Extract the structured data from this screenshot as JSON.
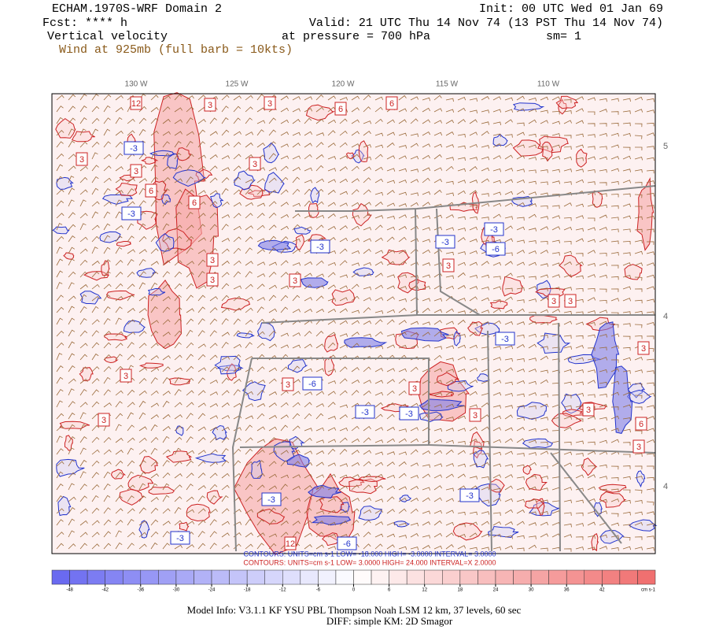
{
  "header": {
    "title": "ECHAM.1970S-WRF Domain 2",
    "init": "Init: 00 UTC Wed 01 Jan 69",
    "forecast": "Fcst: **** h",
    "valid": "Valid: 21 UTC Thu 14 Nov 74 (13 PST Thu 14 Nov 74)",
    "field": "Vertical velocity",
    "level": "at pressure =  700 hPa",
    "smoothing": "sm= 1",
    "wind": "Wind at 925mb (full barb = 10kts)"
  },
  "map": {
    "longitude_labels": [
      "130 W",
      "125 W",
      "120 W",
      "115 W",
      "110 W"
    ],
    "latitude_labels": [
      "5",
      "4",
      "4"
    ],
    "contour_labels": [
      "12",
      "3",
      "3",
      "6",
      "6",
      "-3",
      "3",
      "3",
      "6",
      "-3",
      "6",
      "3",
      "-3",
      "3",
      "3",
      "3",
      "-3",
      "3",
      "-3",
      "-6",
      "3",
      "3",
      "-3",
      "3",
      "-6",
      "3",
      "3",
      "-3",
      "-3",
      "3",
      "3",
      "6",
      "-3",
      "-3",
      "12",
      "-6",
      "-3",
      "3",
      "3",
      "3"
    ],
    "positive_color": "#cc2222",
    "negative_color": "#2233cc"
  },
  "contour_info": {
    "negative": "CONTOURS:  UNITS=cm s-1   LOW=  -18.000     HIGH=  -3.0000     INTERVAL=  3.0000",
    "positive": "CONTOURS:  UNITS=cm s-1   LOW=  3.0000     HIGH=  24.000     INTERVAL=X  2.0000"
  },
  "colorbar": {
    "ticks": [
      -48,
      -42,
      -36,
      -30,
      -24,
      -18,
      -12,
      -6,
      0,
      6,
      12,
      18,
      24,
      30,
      36,
      42
    ],
    "unit": "cm s-1",
    "low_color": "#6a6af0",
    "mid_color": "#ffffff",
    "high_color": "#f07070"
  },
  "footer": {
    "model_info": "Model Info: V3.1.1     KF       YSU PBL   Thompson     Noah LSM   12 km,     37 levels,     60 sec",
    "diff": "DIFF: simple KM: 2D Smagor"
  }
}
